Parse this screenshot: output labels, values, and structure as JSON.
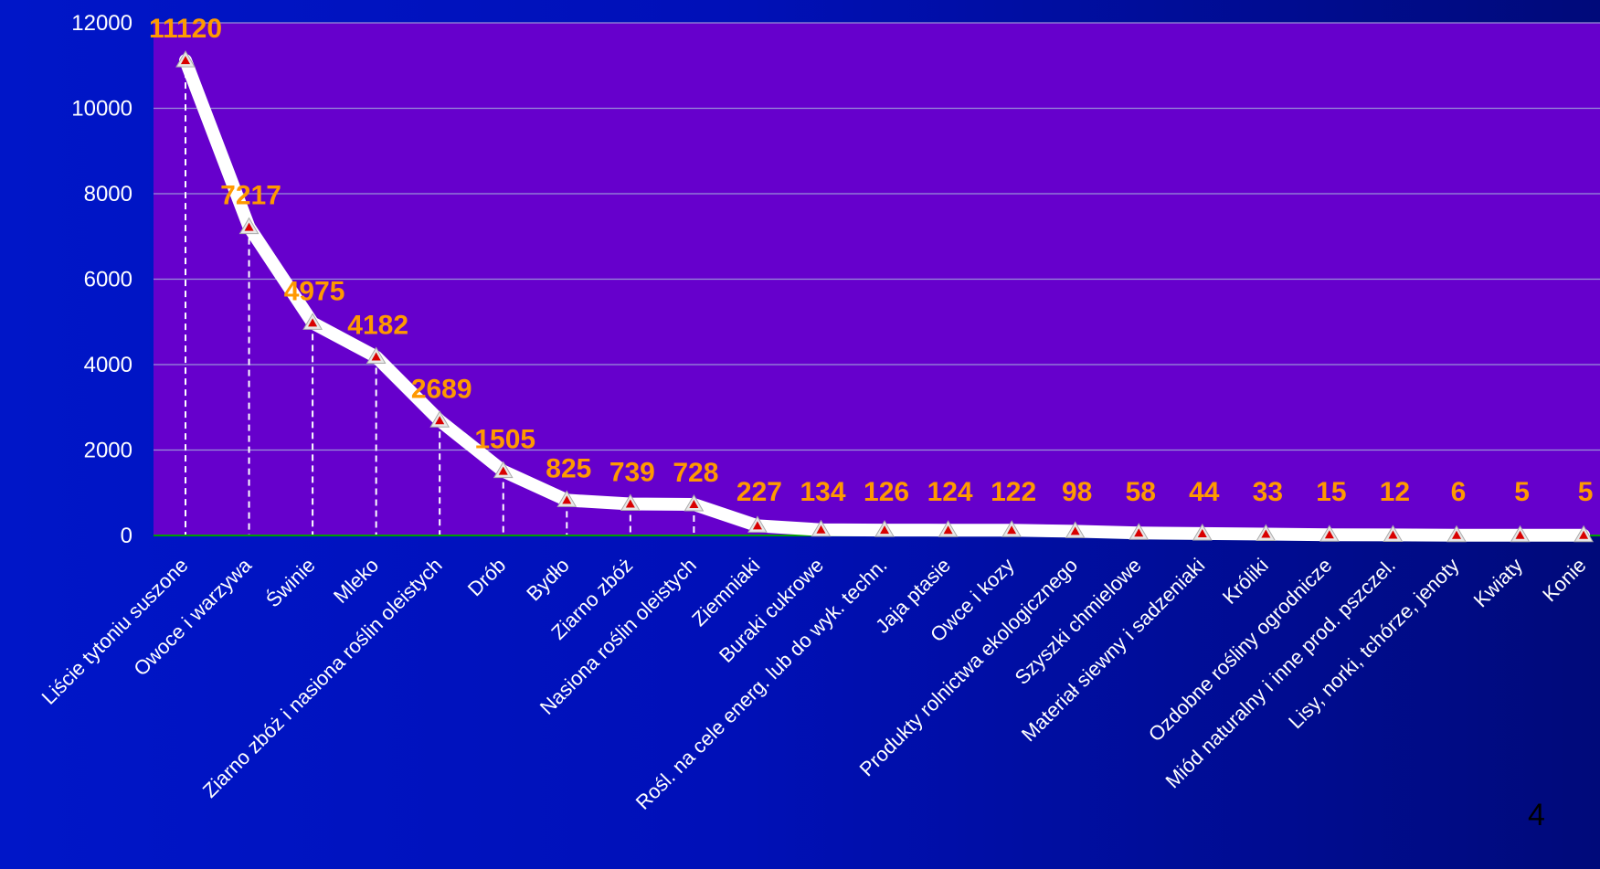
{
  "page_number": "4",
  "colors": {
    "plot_background": "#6600cc",
    "gridline": "#9a8fd8",
    "line": "#ffffff",
    "marker": "#d90000",
    "data_label": "#ff9900",
    "tick_text": "#ffffff",
    "drop_line": "#ffffff",
    "baseline": "#00a000"
  },
  "chart_data": {
    "type": "line",
    "title": "",
    "xlabel": "",
    "ylabel": "",
    "ylim": [
      0,
      12000
    ],
    "yticks": [
      0,
      2000,
      4000,
      6000,
      8000,
      10000,
      12000
    ],
    "grid": true,
    "legend": "none",
    "categories": [
      "Liście tytoniu suszone",
      "Owoce i warzywa",
      "Świnie",
      "Mleko",
      "Ziarno zbóż i nasiona roślin oleistych",
      "Drób",
      "Bydło",
      "Ziarno zbóż",
      "Nasiona roślin oleistych",
      "Ziemniaki",
      "Buraki cukrowe",
      "Rośl. na cele energ. lub do wyk. techn.",
      "Jaja ptasie",
      "Owce i kozy",
      "Produkty rolnictwa ekologicznego",
      "Szyszki chmielowe",
      "Materiał siewny i sadzeniaki",
      "Króliki",
      "Ozdobne rośliny ogrodnicze",
      "Miód naturalny i inne prod. pszczel.",
      "Lisy, norki, tchórze, jenoty",
      "Kwiaty",
      "Konie"
    ],
    "values": [
      11120,
      7217,
      4975,
      4182,
      2689,
      1505,
      825,
      739,
      728,
      227,
      134,
      126,
      124,
      122,
      98,
      58,
      44,
      33,
      15,
      12,
      6,
      5,
      5
    ],
    "data_labels": [
      "11120",
      "7217",
      "4975",
      "4182",
      "2689",
      "1505",
      "825",
      "739",
      "728",
      "227",
      "134",
      "126",
      "124",
      "122",
      "98",
      "58",
      "44",
      "33",
      "15",
      "12",
      "6",
      "5",
      "5"
    ]
  }
}
